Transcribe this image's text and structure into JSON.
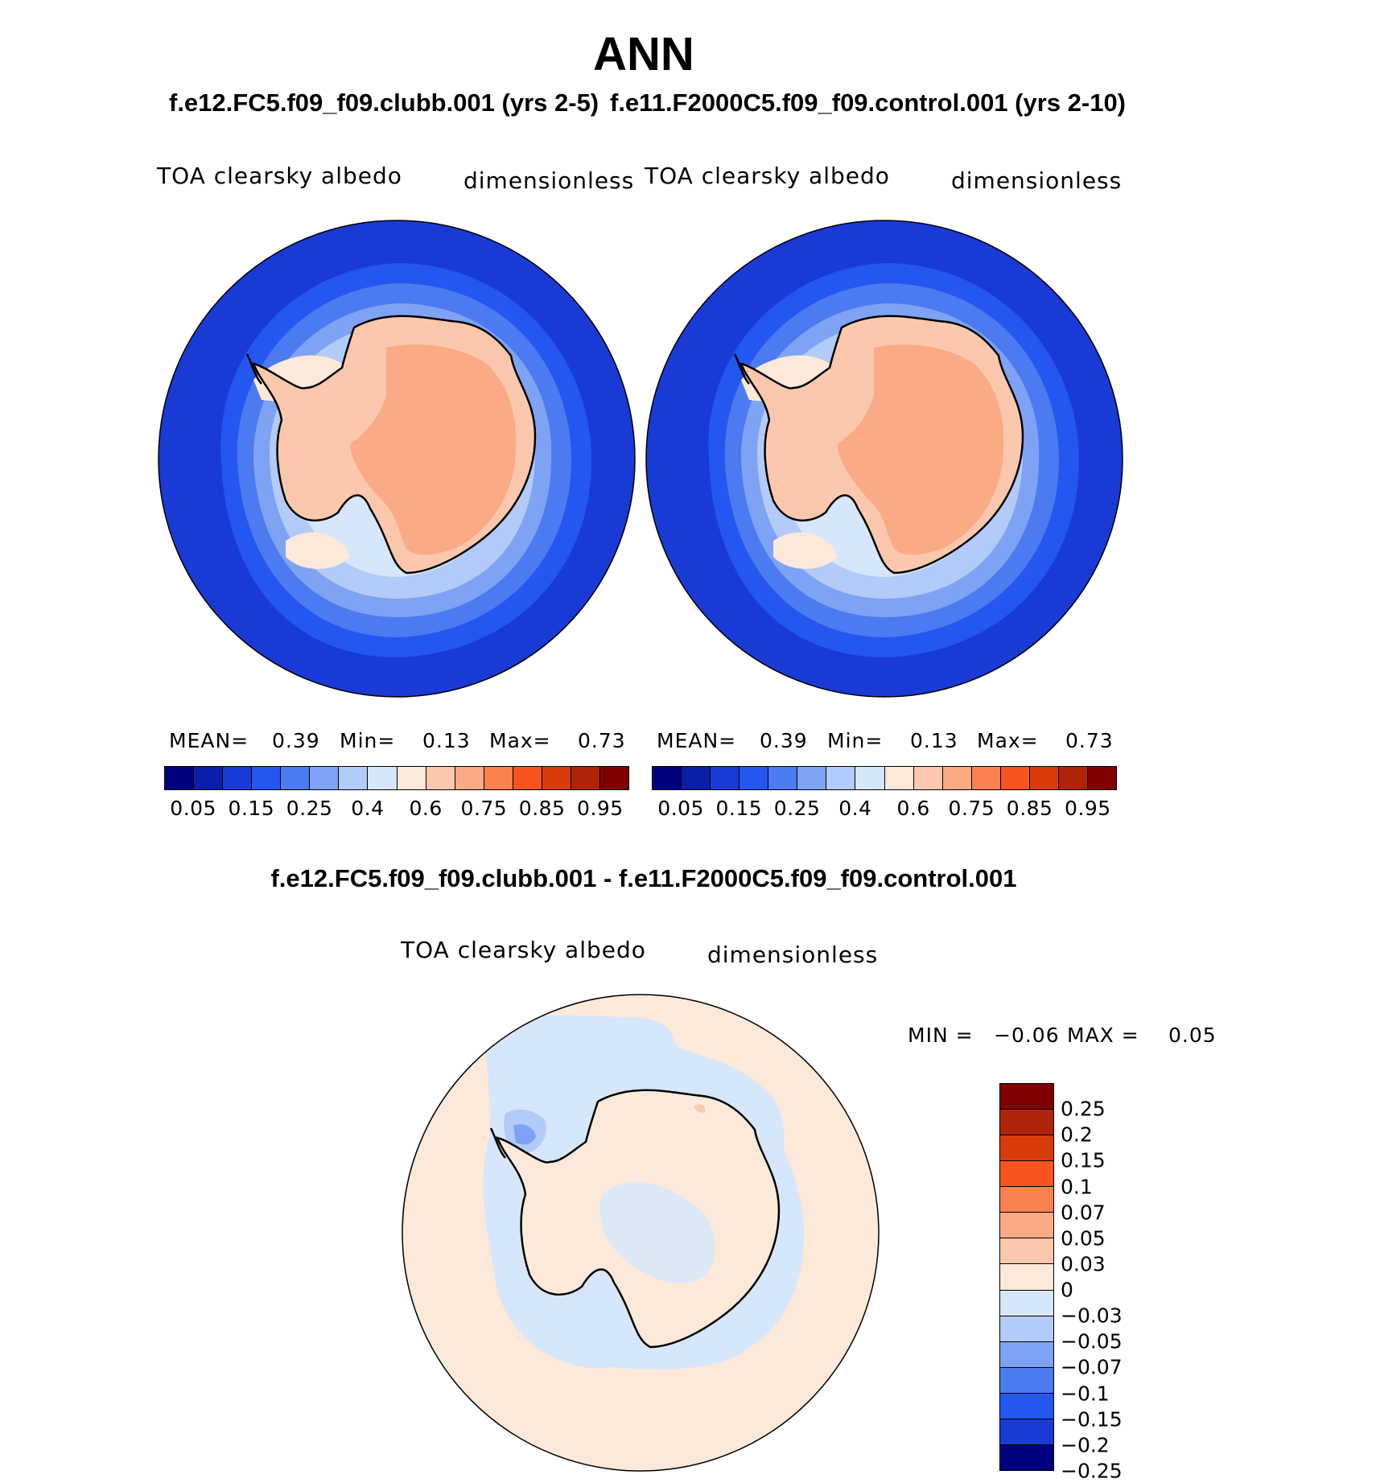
{
  "page_title": "ANN",
  "left_panel": {
    "case_title": "f.e12.FC5.f09_f09.clubb.001 (yrs 2-5)",
    "variable": "TOA clearsky albedo",
    "units": "dimensionless",
    "stats": {
      "mean_label": "MEAN=",
      "mean": "0.39",
      "min_label": "Min=",
      "min": "0.13",
      "max_label": "Max=",
      "max": "0.73"
    }
  },
  "right_panel": {
    "case_title": "f.e11.F2000C5.f09_f09.control.001 (yrs 2-10)",
    "variable": "TOA clearsky albedo",
    "units": "dimensionless",
    "stats": {
      "mean_label": "MEAN=",
      "mean": "0.39",
      "min_label": "Min=",
      "min": "0.13",
      "max_label": "Max=",
      "max": "0.73"
    }
  },
  "diff_panel": {
    "title": "f.e12.FC5.f09_f09.clubb.001 - f.e11.F2000C5.f09_f09.control.001",
    "variable": "TOA clearsky albedo",
    "units": "dimensionless",
    "stats": {
      "min_label": "MIN =",
      "min": "−0.06",
      "max_label": "MAX =",
      "max": "0.05"
    }
  },
  "abs_colorbar": {
    "colors": [
      "#00007f",
      "#0a1fa8",
      "#1a3ad6",
      "#2456f0",
      "#4c7af0",
      "#7ea3f4",
      "#b2cbf8",
      "#d7e7fb",
      "#fde9d9",
      "#fcc8ad",
      "#fbaa86",
      "#fa8150",
      "#f7541f",
      "#d93c0c",
      "#b02409",
      "#800000"
    ],
    "tick_labels": [
      "0.05",
      "0.15",
      "0.25",
      "0.4",
      "0.6",
      "0.75",
      "0.85",
      "0.95"
    ]
  },
  "diff_colorbar": {
    "colors": [
      "#800000",
      "#b02409",
      "#d93c0c",
      "#f7541f",
      "#fa8150",
      "#fbaa86",
      "#fcc8ad",
      "#fde9d9",
      "#d7e7fb",
      "#b2cbf8",
      "#7ea3f4",
      "#4c7af0",
      "#2456f0",
      "#1a3ad6",
      "#00007f"
    ],
    "tick_labels": [
      "0.25",
      "0.2",
      "0.15",
      "0.1",
      "0.07",
      "0.05",
      "0.03",
      "0",
      "−0.03",
      "−0.05",
      "−0.07",
      "−0.1",
      "−0.15",
      "−0.2",
      "−0.25"
    ]
  },
  "map_colors": {
    "ocean_far": "#1a3ad6",
    "ocean_mid": "#2456f0",
    "ocean_near": "#4c7af0",
    "ice_edge": "#7ea3f4",
    "sea_ice": "#b2cbf8",
    "pack_ice": "#d7e7fb",
    "coast_ice": "#fde9d9",
    "land": "#fcc8ad",
    "plateau": "#fbaa86",
    "diff_bg": "#fde9d9",
    "diff_neg": "#d7e7fb",
    "diff_neg2": "#b2cbf8",
    "diff_neg3": "#7ea3f4",
    "diff_pos": "#fcc8ad"
  }
}
